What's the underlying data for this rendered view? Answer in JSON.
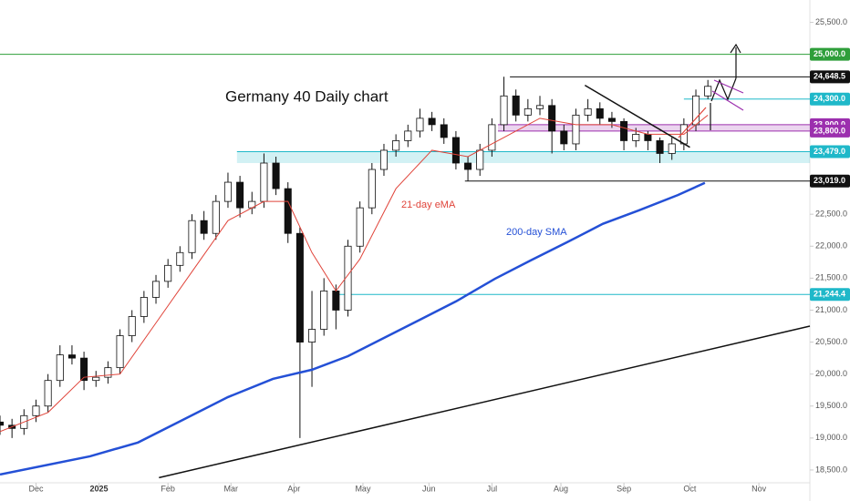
{
  "chart_data": {
    "type": "candlestick",
    "title": "Germany 40 Daily chart",
    "xlim": [
      0,
      270
    ],
    "ylim": [
      18300,
      25850
    ],
    "grid": false,
    "up_color": "#ffffff",
    "down_color": "#111111",
    "xticks": [
      {
        "value": 12,
        "label": "Dec"
      },
      {
        "value": 33,
        "label": "2025"
      },
      {
        "value": 56,
        "label": "Feb"
      },
      {
        "value": 77,
        "label": "Mar"
      },
      {
        "value": 98,
        "label": "Apr"
      },
      {
        "value": 121,
        "label": "May"
      },
      {
        "value": 143,
        "label": "Jun"
      },
      {
        "value": 164,
        "label": "Jul"
      },
      {
        "value": 187,
        "label": "Aug"
      },
      {
        "value": 208,
        "label": "Sep"
      },
      {
        "value": 230,
        "label": "Oct"
      },
      {
        "value": 253,
        "label": "Nov"
      }
    ],
    "yticks": [
      {
        "value": 18500,
        "label": "18,500.0"
      },
      {
        "value": 19000,
        "label": "19,000.0"
      },
      {
        "value": 19500,
        "label": "19,500.0"
      },
      {
        "value": 20000,
        "label": "20,000.0"
      },
      {
        "value": 20500,
        "label": "20,500.0"
      },
      {
        "value": 21000,
        "label": "21,000.0"
      },
      {
        "value": 21500,
        "label": "21,500.0"
      },
      {
        "value": 22000,
        "label": "22,000.0"
      },
      {
        "value": 22500,
        "label": "22,500.0"
      },
      {
        "value": 25500,
        "label": "25,500.0"
      }
    ],
    "candles": {
      "x": [
        0,
        4,
        8,
        12,
        16,
        20,
        24,
        28,
        32,
        36,
        40,
        44,
        48,
        52,
        56,
        60,
        64,
        68,
        72,
        76,
        80,
        84,
        88,
        92,
        96,
        100,
        104,
        108,
        112,
        116,
        120,
        124,
        128,
        132,
        136,
        140,
        144,
        148,
        152,
        156,
        160,
        164,
        168,
        172,
        176,
        180,
        184,
        188,
        192,
        196,
        200,
        204,
        208,
        212,
        216,
        220,
        224,
        228,
        232,
        236
      ],
      "open": [
        19250,
        19200,
        19150,
        19350,
        19500,
        19900,
        20300,
        20250,
        19900,
        19950,
        20100,
        20600,
        20900,
        21200,
        21450,
        21700,
        21900,
        22400,
        22200,
        22700,
        23000,
        22600,
        22700,
        23300,
        22900,
        22200,
        20500,
        20700,
        21300,
        21000,
        22000,
        22600,
        23200,
        23500,
        23650,
        23800,
        24000,
        23900,
        23700,
        23300,
        23200,
        23500,
        23900,
        24350,
        24050,
        24150,
        24200,
        23800,
        23600,
        24050,
        24150,
        24000,
        23950,
        23650,
        23750,
        23650,
        23450,
        23600,
        23900,
        24350
      ],
      "high": [
        19350,
        19300,
        19450,
        19600,
        20000,
        20450,
        20450,
        20350,
        20050,
        20200,
        20700,
        21000,
        21300,
        21550,
        21800,
        22000,
        22500,
        22550,
        22800,
        23150,
        23100,
        22850,
        23450,
        23400,
        23000,
        22300,
        21300,
        21500,
        21400,
        22100,
        22700,
        23300,
        23600,
        23750,
        23900,
        24150,
        24100,
        24000,
        23800,
        23400,
        23600,
        24000,
        24650,
        24450,
        24300,
        24350,
        24300,
        23900,
        24150,
        24300,
        24250,
        24100,
        24000,
        23850,
        23800,
        23700,
        23700,
        24000,
        24450,
        24600
      ],
      "low": [
        19050,
        19000,
        19050,
        19250,
        19400,
        19800,
        20150,
        19750,
        19800,
        19850,
        20000,
        20500,
        20800,
        21100,
        21350,
        21600,
        21800,
        22100,
        22100,
        22600,
        22450,
        22500,
        22600,
        22800,
        22050,
        19000,
        19800,
        20600,
        20700,
        20900,
        21900,
        22500,
        23100,
        23400,
        23550,
        23700,
        23800,
        23600,
        23200,
        23019,
        23100,
        23400,
        23800,
        23950,
        23950,
        24050,
        23450,
        23500,
        23500,
        23950,
        23900,
        23850,
        23500,
        23550,
        23500,
        23300,
        23350,
        23500,
        23800,
        24300
      ],
      "close": [
        19200,
        19150,
        19350,
        19500,
        19900,
        20300,
        20250,
        19900,
        19950,
        20100,
        20600,
        20900,
        21200,
        21450,
        21700,
        21900,
        22400,
        22200,
        22700,
        23000,
        22600,
        22700,
        23300,
        22900,
        22200,
        20500,
        20700,
        21300,
        21000,
        22000,
        22600,
        23200,
        23500,
        23650,
        23800,
        24000,
        23900,
        23700,
        23300,
        23200,
        23500,
        23900,
        24350,
        24050,
        24150,
        24200,
        23800,
        23600,
        24050,
        24150,
        24000,
        23950,
        23650,
        23750,
        23650,
        23450,
        23600,
        23900,
        24350,
        24500
      ]
    },
    "series": [
      {
        "name": "21-day eMA",
        "color": "#e0443a",
        "width": 1,
        "x": [
          0,
          16,
          28,
          40,
          52,
          64,
          76,
          88,
          96,
          104,
          112,
          120,
          132,
          144,
          156,
          168,
          180,
          192,
          204,
          216,
          228,
          236
        ],
        "values": [
          19100,
          19400,
          19950,
          20000,
          20800,
          21600,
          22400,
          22700,
          22700,
          21900,
          21300,
          21800,
          22900,
          23500,
          23400,
          23700,
          24000,
          23900,
          23900,
          23750,
          23750,
          24050
        ]
      },
      {
        "name": "200-day SMA",
        "color": "#2450d6",
        "width": 2.5,
        "x": [
          0,
          30,
          46,
          61,
          76,
          91,
          104,
          116,
          128,
          140,
          152,
          165,
          177,
          189,
          201,
          213,
          226,
          235
        ],
        "values": [
          18430,
          18714,
          18930,
          19284,
          19640,
          19925,
          20068,
          20280,
          20565,
          20850,
          21136,
          21490,
          21780,
          22060,
          22350,
          22560,
          22800,
          22990
        ]
      }
    ],
    "trendlines": [
      {
        "color": "#111111",
        "x": [
          53,
          270
        ],
        "values": [
          18380,
          20750
        ]
      },
      {
        "color": "#111111",
        "x": [
          195,
          230
        ],
        "values": [
          24516,
          23547
        ]
      }
    ],
    "bands": [
      {
        "low": 23800,
        "high": 23900,
        "start": 166,
        "color": "#9c2fae"
      },
      {
        "low": 23300,
        "high": 23479,
        "start": 79,
        "color": "#1fb8c9"
      }
    ],
    "levels": [
      {
        "value": 25000,
        "label": "25,000.0",
        "start": 0,
        "color": "#2e9e3a"
      },
      {
        "value": 24648.5,
        "label": "24,648.5",
        "start": 170,
        "color": "#111111"
      },
      {
        "value": 24300,
        "label": "24,300.0",
        "start": 228,
        "color": "#1fb8c9"
      },
      {
        "value": 23900,
        "label": "23,900.0",
        "start": 166,
        "color": "#9c2fae"
      },
      {
        "value": 23800,
        "label": "23,800.0",
        "start": 166,
        "color": "#9c2fae"
      },
      {
        "value": 23479,
        "label": "23,479.0",
        "start": 79,
        "color": "#1fb8c9"
      },
      {
        "value": 23019,
        "label": "23,019.0",
        "start": 155,
        "color": "#111111"
      },
      {
        "value": 21244.4,
        "label": "21,244.4",
        "start": 113,
        "color": "#1fb8c9"
      }
    ]
  }
}
